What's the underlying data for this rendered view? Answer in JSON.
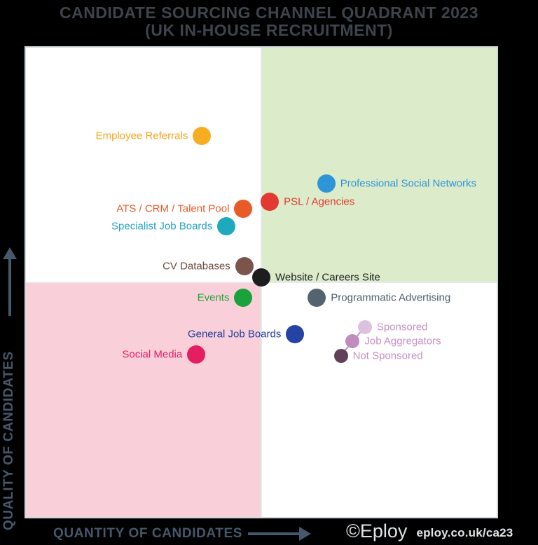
{
  "header": {
    "title": "CANDIDATE SOURCING CHANNEL QUADRANT 2023",
    "subtitle": "(UK IN-HOUSE RECRUITMENT)",
    "color": "#3e444c"
  },
  "axes": {
    "y_label": "QUALITY OF CANDIDATES",
    "x_label": "QUANTITY OF CANDIDATES",
    "color": "#46586b"
  },
  "footer": {
    "brand": "©Eploy",
    "url": "eploy.co.uk/ca23",
    "color": "#dfe4e7"
  },
  "chart_data": {
    "type": "scatter",
    "title": "CANDIDATE SOURCING CHANNEL QUADRANT 2023",
    "subtitle": "(UK IN-HOUSE RECRUITMENT)",
    "xlabel": "QUANTITY OF CANDIDATES",
    "ylabel": "QUALITY OF CANDIDATES",
    "x_range": [
      0,
      100
    ],
    "y_range": [
      0,
      100
    ],
    "grid": false,
    "quadrants": {
      "top_left": "#ffffff",
      "top_right": "#dcebc9",
      "bottom_left": "#f9d0d9",
      "bottom_right": "#ffffff",
      "border_color": "#cfd9dd"
    },
    "points": [
      {
        "label": "Employee Referrals",
        "x": 37.4,
        "y": 81.2,
        "dot_color": "#f7ad22",
        "label_color": "#f7a41f",
        "label_side": "left",
        "size": 26
      },
      {
        "label": "Professional Social Networks",
        "x": 63.8,
        "y": 71.1,
        "dot_color": "#2e95d6",
        "label_color": "#2e95d6",
        "label_side": "right",
        "size": 26
      },
      {
        "label": "PSL / Agencies",
        "x": 51.8,
        "y": 67.1,
        "dot_color": "#e23a31",
        "label_color": "#e23a31",
        "label_side": "right",
        "size": 26
      },
      {
        "label": "ATS / CRM / Talent Pool",
        "x": 46.2,
        "y": 65.7,
        "dot_color": "#e85a27",
        "label_color": "#ea5a28",
        "label_side": "left",
        "size": 26
      },
      {
        "label": "Specialist Job Boards",
        "x": 42.6,
        "y": 62.0,
        "dot_color": "#1ea9bf",
        "label_color": "#28a4c4",
        "label_side": "left",
        "size": 26
      },
      {
        "label": "CV Databases",
        "x": 46.4,
        "y": 53.4,
        "dot_color": "#7b544b",
        "label_color": "#6f4b41",
        "label_side": "left",
        "size": 26
      },
      {
        "label": "Website / Careers Site",
        "x": 50.0,
        "y": 51.0,
        "dot_color": "#1d1d1f",
        "label_color": "#1e1e20",
        "label_side": "right",
        "size": 26
      },
      {
        "label": "Events",
        "x": 46.2,
        "y": 46.7,
        "dot_color": "#1aa23c",
        "label_color": "#21a437",
        "label_side": "left",
        "size": 26
      },
      {
        "label": "Programmatic Advertising",
        "x": 61.8,
        "y": 46.7,
        "dot_color": "#53646f",
        "label_color": "#4c5d68",
        "label_side": "right",
        "size": 26
      },
      {
        "label": "Sponsored",
        "x": 72.0,
        "y": 40.5,
        "dot_color": "#dcc2de",
        "label_color": "#c591c2",
        "label_side": "right",
        "size": 20
      },
      {
        "label": "General Job Boards",
        "x": 57.2,
        "y": 39.0,
        "dot_color": "#2443a4",
        "label_color": "#1e3da0",
        "label_side": "left",
        "size": 26
      },
      {
        "label": "Job Aggregators",
        "x": 69.4,
        "y": 37.4,
        "dot_color": "#c08cbc",
        "label_color": "#c591c2",
        "label_side": "right",
        "size": 20
      },
      {
        "label": "Social Media",
        "x": 36.2,
        "y": 34.7,
        "dot_color": "#e51e62",
        "label_color": "#e51e62",
        "label_side": "left",
        "size": 26
      },
      {
        "label": "Not Sponsored",
        "x": 66.9,
        "y": 34.4,
        "dot_color": "#63405a",
        "label_color": "#c591c2",
        "label_side": "right",
        "size": 20
      }
    ],
    "connections": [
      [
        "Sponsored",
        "Job Aggregators"
      ],
      [
        "Job Aggregators",
        "Not Sponsored"
      ]
    ],
    "connection_color": "#c18fc0",
    "legend": "none"
  }
}
